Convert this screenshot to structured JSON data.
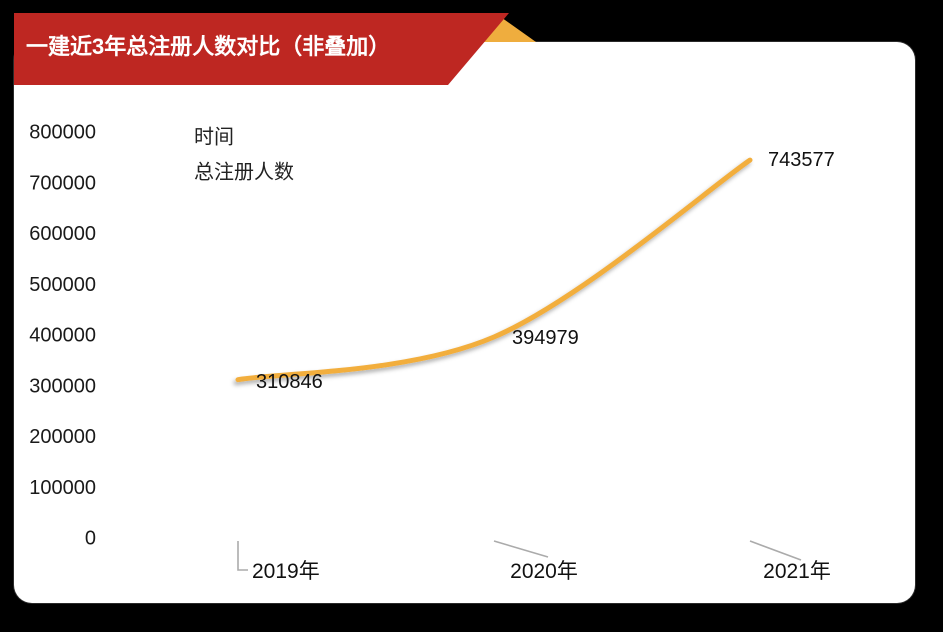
{
  "banner": {
    "title": "一建近3年总注册人数对比（非叠加）",
    "bg_color": "#BE2722",
    "fold_color": "#EFAD3E",
    "text_color": "#FFFFFF"
  },
  "colors": {
    "background": "#000000",
    "card": "#FFFFFF",
    "leader_line": "#ABABAB",
    "label_text": "#1A1A1A"
  },
  "chart_data": {
    "type": "line",
    "title": "一建近3年总注册人数对比（非叠加）",
    "categories": [
      "2019年",
      "2020年",
      "2021年"
    ],
    "series": [
      {
        "name": "时间",
        "color": "#B2292A",
        "values": [
          0,
          0,
          0
        ],
        "smooth": false,
        "labeled": false
      },
      {
        "name": "总注册人数",
        "color": "#F2AE3D",
        "values": [
          310846,
          394979,
          743577
        ],
        "smooth": true,
        "labeled": true,
        "data_labels": [
          "310846",
          "394979",
          "743577"
        ]
      }
    ],
    "y_axis": {
      "min": 0,
      "max": 800000,
      "step": 100000,
      "tick_labels": [
        "0",
        "100000",
        "200000",
        "300000",
        "400000",
        "500000",
        "600000",
        "700000",
        "800000"
      ]
    },
    "xlabel": "",
    "ylabel": "",
    "grid": false,
    "legend_position": "top-left"
  }
}
